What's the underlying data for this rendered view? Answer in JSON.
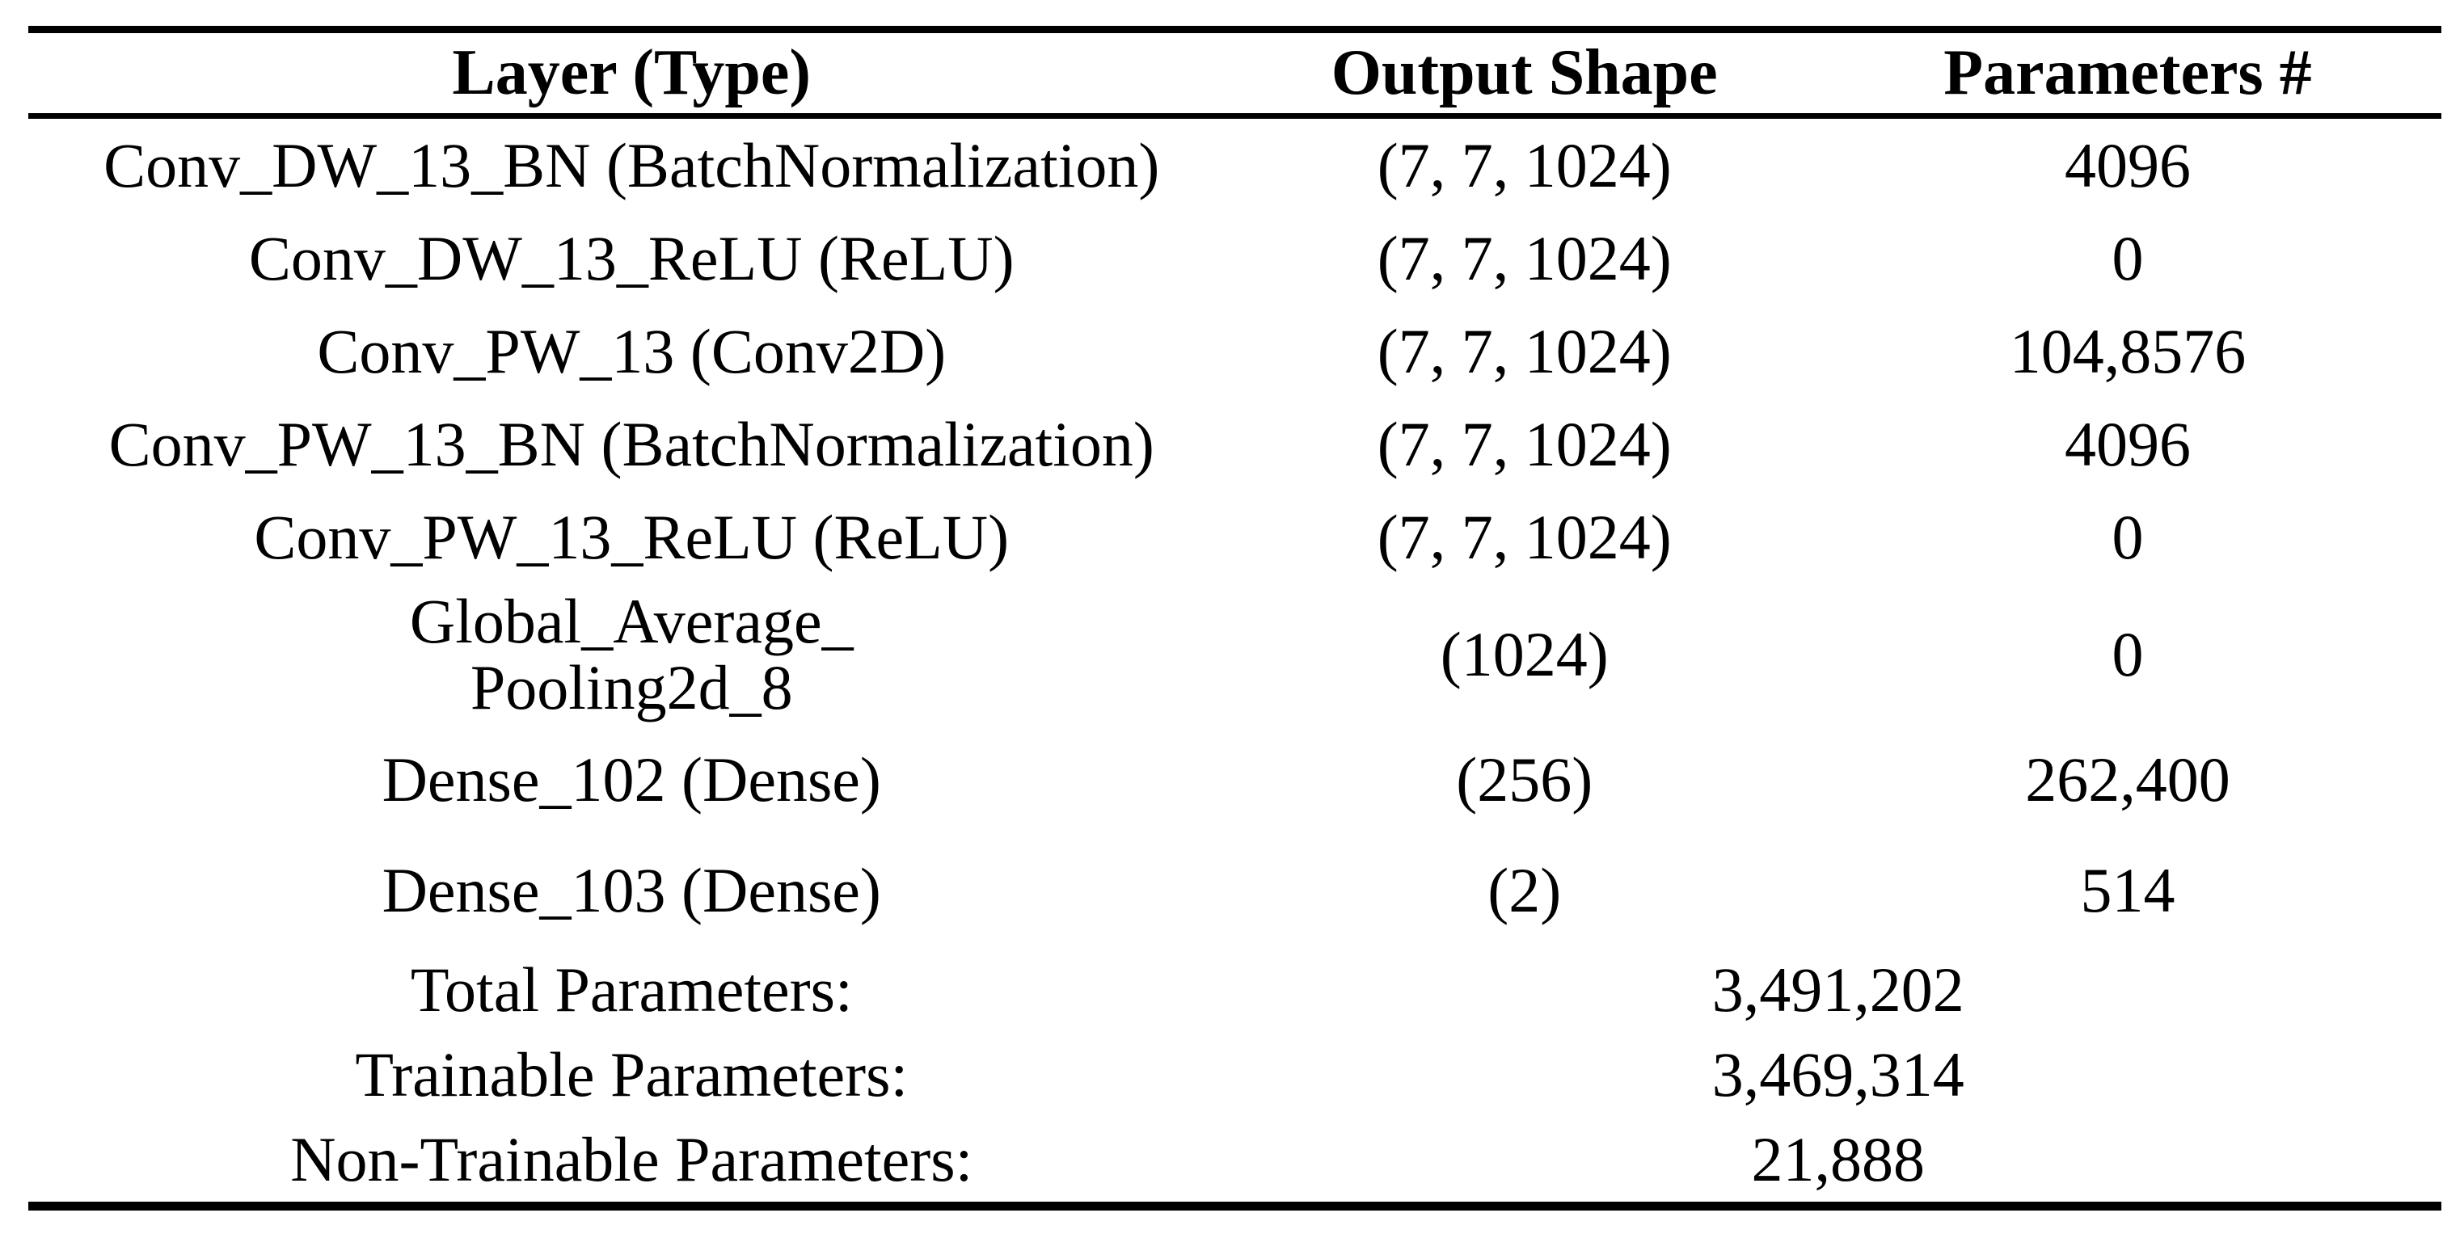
{
  "page": {
    "background_color": "#ffffff",
    "text_color": "#000000",
    "rule_color": "#000000"
  },
  "table": {
    "columns": [
      "Layer (Type)",
      "Output Shape",
      "Parameters #"
    ],
    "rows": [
      {
        "layer": "Conv_DW_13_BN (BatchNormalization)",
        "output_shape": "(7, 7, 1024)",
        "parameters": "4096"
      },
      {
        "layer": "Conv_DW_13_ReLU (ReLU)",
        "output_shape": "(7, 7, 1024)",
        "parameters": "0"
      },
      {
        "layer": "Conv_PW_13 (Conv2D)",
        "output_shape": "(7, 7, 1024)",
        "parameters": "104,8576"
      },
      {
        "layer": "Conv_PW_13_BN (BatchNormalization)",
        "output_shape": "(7, 7, 1024)",
        "parameters": "4096"
      },
      {
        "layer": "Conv_PW_13_ReLU (ReLU)",
        "output_shape": "(7, 7, 1024)",
        "parameters": "0"
      },
      {
        "layer": "Global_Average_\nPooling2d_8",
        "output_shape": "(1024)",
        "parameters": "0"
      },
      {
        "layer": "Dense_102 (Dense)",
        "output_shape": "(256)",
        "parameters": "262,400"
      },
      {
        "layer": "Dense_103 (Dense)",
        "output_shape": "(2)",
        "parameters": "514"
      }
    ],
    "summary": [
      {
        "label": "Total Parameters:",
        "value": "3,491,202"
      },
      {
        "label": "Trainable Parameters:",
        "value": "3,469,314"
      },
      {
        "label": "Non-Trainable Parameters:",
        "value": "21,888"
      }
    ]
  }
}
